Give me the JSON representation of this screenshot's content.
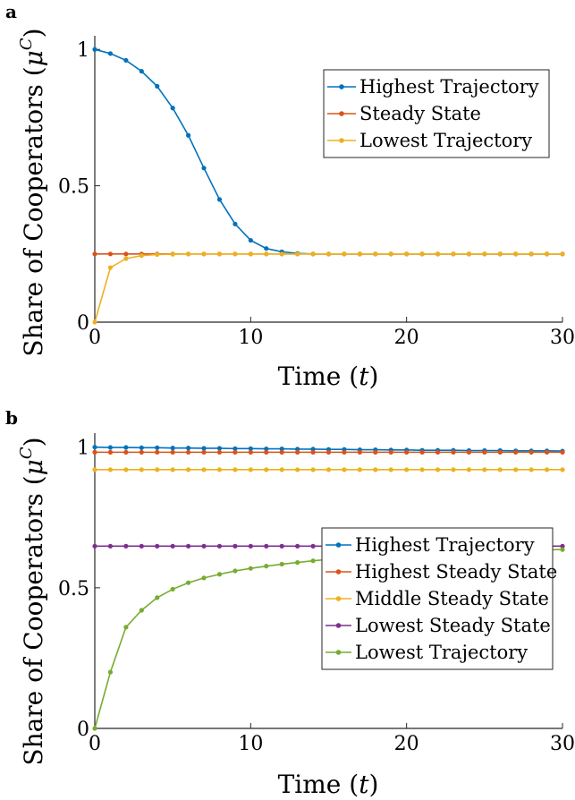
{
  "chart_data": [
    {
      "panel_label": "a",
      "type": "line",
      "xlabel": "Time (t)",
      "ylabel": "Share of Cooperators (μ^C)",
      "xlim": [
        0,
        30
      ],
      "ylim": [
        0,
        1.05
      ],
      "xticks": [
        0,
        10,
        20,
        30
      ],
      "xtick_labels": [
        "0",
        "10",
        "20",
        "30"
      ],
      "yticks": [
        0,
        0.5,
        1
      ],
      "ytick_labels": [
        "0",
        "0.5",
        "1"
      ],
      "grid": false,
      "legend_position": "top-right",
      "x": [
        0,
        1,
        2,
        3,
        4,
        5,
        6,
        7,
        8,
        9,
        10,
        11,
        12,
        13,
        14,
        15,
        16,
        17,
        18,
        19,
        20,
        21,
        22,
        23,
        24,
        25,
        26,
        27,
        28,
        29,
        30
      ],
      "series": [
        {
          "name": "Highest Trajectory",
          "color": "#0072BD",
          "values": [
            1.0,
            0.985,
            0.96,
            0.92,
            0.865,
            0.785,
            0.685,
            0.565,
            0.45,
            0.36,
            0.3,
            0.27,
            0.258,
            0.252,
            0.25,
            0.25,
            0.25,
            0.25,
            0.25,
            0.25,
            0.25,
            0.25,
            0.25,
            0.25,
            0.25,
            0.25,
            0.25,
            0.25,
            0.25,
            0.25,
            0.25
          ]
        },
        {
          "name": "Steady State",
          "color": "#D95319",
          "values": [
            0.25,
            0.25,
            0.25,
            0.25,
            0.25,
            0.25,
            0.25,
            0.25,
            0.25,
            0.25,
            0.25,
            0.25,
            0.25,
            0.25,
            0.25,
            0.25,
            0.25,
            0.25,
            0.25,
            0.25,
            0.25,
            0.25,
            0.25,
            0.25,
            0.25,
            0.25,
            0.25,
            0.25,
            0.25,
            0.25,
            0.25
          ]
        },
        {
          "name": "Lowest Trajectory",
          "color": "#EDB120",
          "values": [
            0.0,
            0.2,
            0.233,
            0.244,
            0.248,
            0.249,
            0.25,
            0.25,
            0.25,
            0.25,
            0.25,
            0.25,
            0.25,
            0.25,
            0.25,
            0.25,
            0.25,
            0.25,
            0.25,
            0.25,
            0.25,
            0.25,
            0.25,
            0.25,
            0.25,
            0.25,
            0.25,
            0.25,
            0.25,
            0.25,
            0.25
          ]
        }
      ]
    },
    {
      "panel_label": "b",
      "type": "line",
      "xlabel": "Time (t)",
      "ylabel": "Share of Cooperators (μ^C)",
      "xlim": [
        0,
        30
      ],
      "ylim": [
        0,
        1.05
      ],
      "xticks": [
        0,
        10,
        20,
        30
      ],
      "xtick_labels": [
        "0",
        "10",
        "20",
        "30"
      ],
      "yticks": [
        0,
        0.5,
        1
      ],
      "ytick_labels": [
        "0",
        "0.5",
        "1"
      ],
      "grid": false,
      "legend_position": "bottom-right",
      "x": [
        0,
        1,
        2,
        3,
        4,
        5,
        6,
        7,
        8,
        9,
        10,
        11,
        12,
        13,
        14,
        15,
        16,
        17,
        18,
        19,
        20,
        21,
        22,
        23,
        24,
        25,
        26,
        27,
        28,
        29,
        30
      ],
      "series": [
        {
          "name": "Highest Trajectory",
          "color": "#0072BD",
          "values": [
            1.0,
            0.999,
            0.999,
            0.998,
            0.998,
            0.997,
            0.997,
            0.996,
            0.996,
            0.995,
            0.995,
            0.994,
            0.994,
            0.993,
            0.993,
            0.992,
            0.992,
            0.991,
            0.991,
            0.99,
            0.99,
            0.989,
            0.989,
            0.989,
            0.988,
            0.988,
            0.988,
            0.987,
            0.987,
            0.987,
            0.986
          ]
        },
        {
          "name": "Highest Steady State",
          "color": "#D95319",
          "values": [
            0.982,
            0.982,
            0.982,
            0.982,
            0.982,
            0.982,
            0.982,
            0.982,
            0.982,
            0.982,
            0.982,
            0.982,
            0.982,
            0.982,
            0.982,
            0.982,
            0.982,
            0.982,
            0.982,
            0.982,
            0.982,
            0.982,
            0.982,
            0.982,
            0.982,
            0.982,
            0.982,
            0.982,
            0.982,
            0.982,
            0.982
          ]
        },
        {
          "name": "Middle Steady State",
          "color": "#EDB120",
          "values": [
            0.92,
            0.92,
            0.92,
            0.92,
            0.92,
            0.92,
            0.92,
            0.92,
            0.92,
            0.92,
            0.92,
            0.92,
            0.92,
            0.92,
            0.92,
            0.92,
            0.92,
            0.92,
            0.92,
            0.92,
            0.92,
            0.92,
            0.92,
            0.92,
            0.92,
            0.92,
            0.92,
            0.92,
            0.92,
            0.92,
            0.92
          ]
        },
        {
          "name": "Lowest Steady State",
          "color": "#7E2F8E",
          "values": [
            0.648,
            0.648,
            0.648,
            0.648,
            0.648,
            0.648,
            0.648,
            0.648,
            0.648,
            0.648,
            0.648,
            0.648,
            0.648,
            0.648,
            0.648,
            0.648,
            0.648,
            0.648,
            0.648,
            0.648,
            0.648,
            0.648,
            0.648,
            0.648,
            0.648,
            0.648,
            0.648,
            0.648,
            0.648,
            0.648,
            0.648
          ]
        },
        {
          "name": "Lowest Trajectory",
          "color": "#77AC30",
          "values": [
            0.0,
            0.2,
            0.36,
            0.42,
            0.465,
            0.495,
            0.518,
            0.535,
            0.548,
            0.56,
            0.569,
            0.577,
            0.584,
            0.59,
            0.596,
            0.601,
            0.605,
            0.609,
            0.612,
            0.615,
            0.618,
            0.62,
            0.623,
            0.625,
            0.627,
            0.629,
            0.631,
            0.632,
            0.634,
            0.635,
            0.636
          ]
        }
      ]
    }
  ]
}
